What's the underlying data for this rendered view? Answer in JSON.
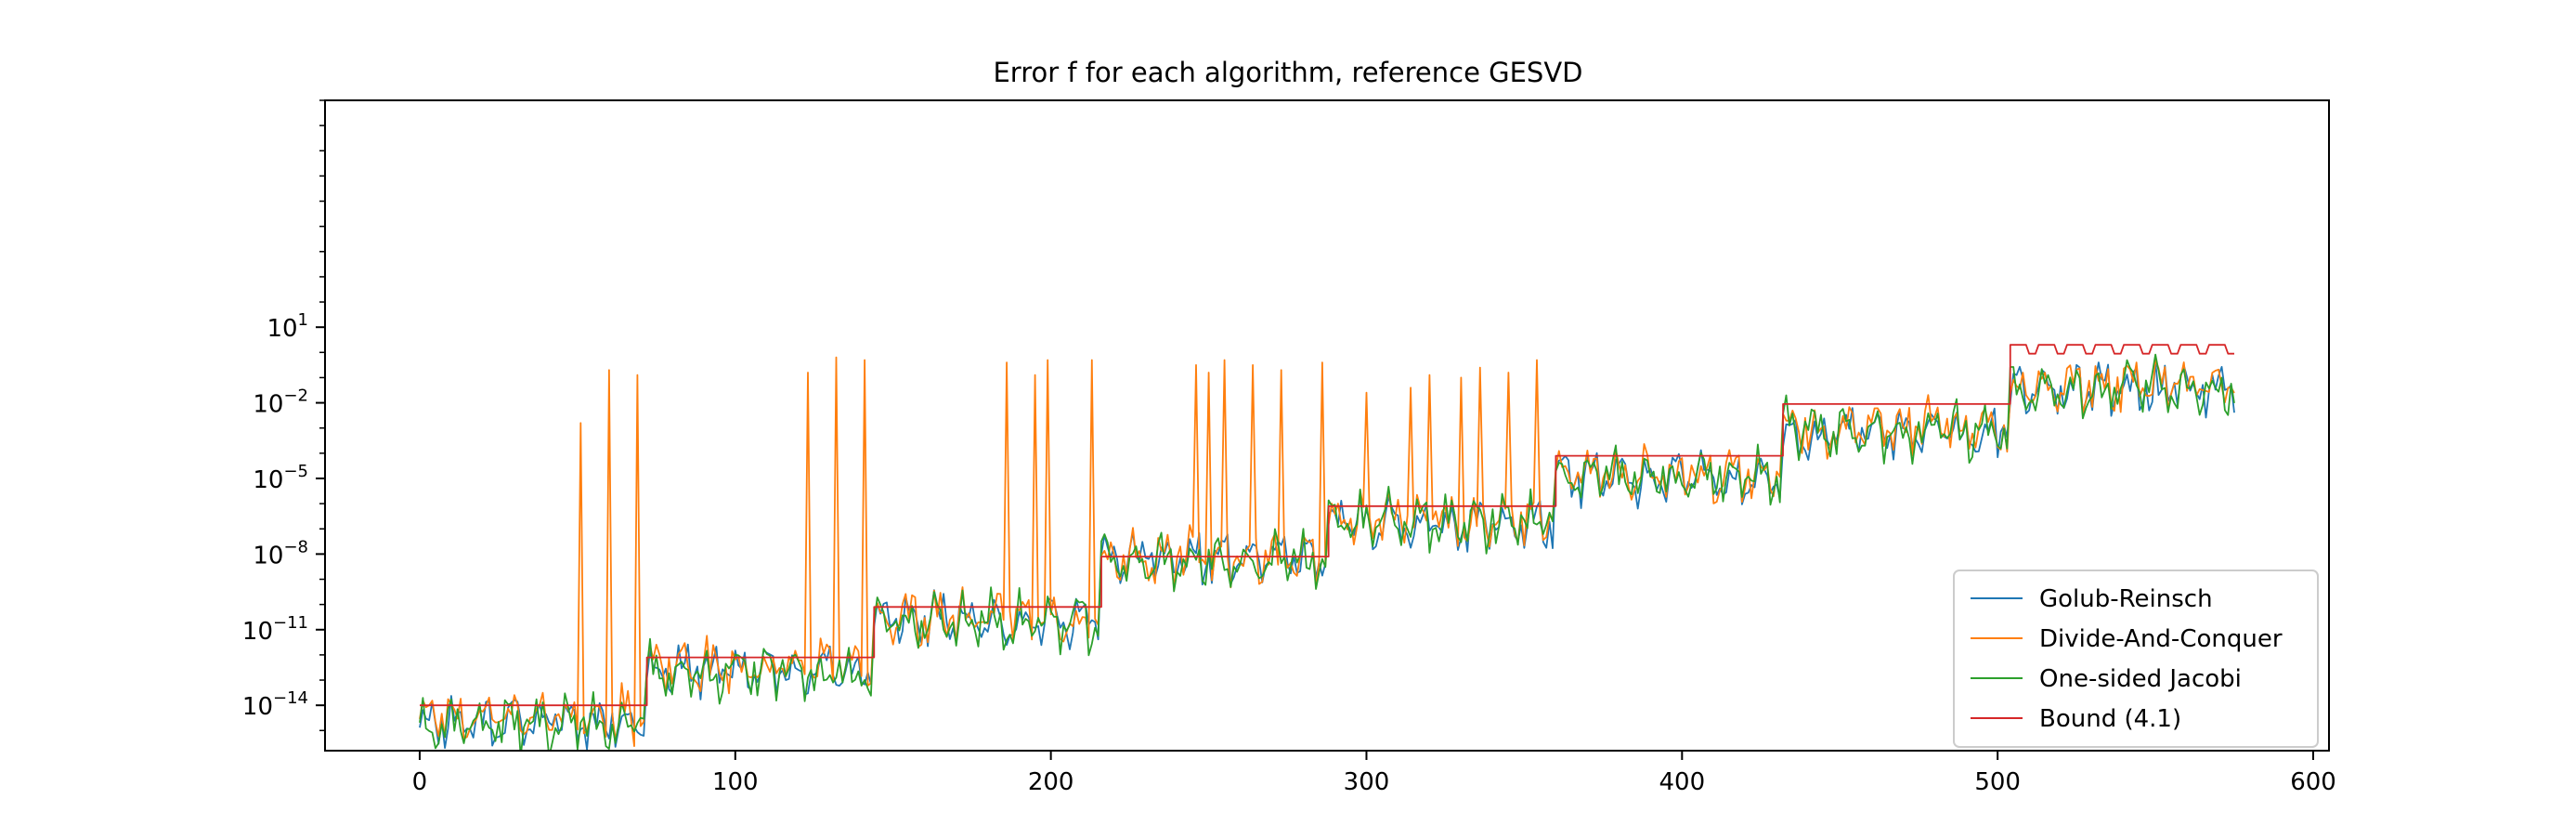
{
  "chart_data": {
    "type": "line",
    "title": "Error f for each algorithm, reference GESVD",
    "xlabel": "",
    "ylabel": "",
    "xscale": "linear",
    "yscale": "log",
    "xlim": [
      -30,
      605
    ],
    "ylim_log10": [
      -15.8,
      10
    ],
    "x_ticks": [
      {
        "value": 0,
        "label": "0"
      },
      {
        "value": 100,
        "label": "100"
      },
      {
        "value": 200,
        "label": "200"
      },
      {
        "value": 300,
        "label": "300"
      },
      {
        "value": 400,
        "label": "400"
      },
      {
        "value": 500,
        "label": "500"
      },
      {
        "value": 600,
        "label": "600"
      }
    ],
    "y_ticks": [
      {
        "exp": 1,
        "base": "10",
        "sup": "1"
      },
      {
        "exp": -2,
        "base": "10",
        "sup": "−2"
      },
      {
        "exp": -5,
        "base": "10",
        "sup": "−5"
      },
      {
        "exp": -8,
        "base": "10",
        "sup": "−8"
      },
      {
        "exp": -11,
        "base": "10",
        "sup": "−11"
      },
      {
        "exp": -14,
        "base": "10",
        "sup": "−14"
      }
    ],
    "grid": false,
    "legend_position": "lower-right",
    "x_count": 576,
    "series": [
      {
        "name": "Golub-Reinsch",
        "color": "#1f77b4",
        "note": "log10 error trend per x-block of 72, approximate",
        "levels": [
          -14.6,
          -12.6,
          -10.6,
          -8.2,
          -6.8,
          -5.0,
          -3.2,
          -1.5
        ],
        "spread": 1.1,
        "seed": 11
      },
      {
        "name": "Divide-And-Conquer",
        "color": "#ff7f0e",
        "levels": [
          -14.4,
          -12.5,
          -10.5,
          -8.1,
          -6.6,
          -4.8,
          -3.0,
          -1.3
        ],
        "spread": 1.2,
        "seed": 23,
        "spikes": [
          [
            51,
            -2.8
          ],
          [
            60,
            -0.7
          ],
          [
            69,
            -0.9
          ],
          [
            123,
            -0.8
          ],
          [
            132,
            -0.2
          ],
          [
            141,
            -0.3
          ],
          [
            186,
            -0.4
          ],
          [
            195,
            -0.9
          ],
          [
            199,
            -0.3
          ],
          [
            213,
            -0.3
          ],
          [
            246,
            -0.5
          ],
          [
            250,
            -0.8
          ],
          [
            255,
            -0.3
          ],
          [
            264,
            -0.5
          ],
          [
            273,
            -0.7
          ],
          [
            286,
            -0.4
          ],
          [
            300,
            -1.6
          ],
          [
            314,
            -1.4
          ],
          [
            320,
            -0.9
          ],
          [
            330,
            -1.0
          ],
          [
            336,
            -0.6
          ],
          [
            345,
            -0.8
          ],
          [
            354,
            -0.3
          ]
        ]
      },
      {
        "name": "One-sided Jacobi",
        "color": "#2ca02c",
        "levels": [
          -14.7,
          -12.7,
          -10.7,
          -8.3,
          -6.7,
          -5.0,
          -3.1,
          -1.4
        ],
        "spread": 1.2,
        "seed": 37
      },
      {
        "name": "Bound (4.1)",
        "color": "#d62728",
        "steps": [
          [
            0,
            72,
            -14.0
          ],
          [
            72,
            144,
            -12.1
          ],
          [
            144,
            216,
            -10.1
          ],
          [
            216,
            288,
            -8.1
          ],
          [
            288,
            360,
            -6.1
          ],
          [
            360,
            432,
            -4.1
          ],
          [
            432,
            504,
            -2.05
          ]
        ],
        "oscillation": {
          "from": 504,
          "to": 576,
          "high": 0.3,
          "low": -0.05,
          "period": 9
        }
      }
    ]
  }
}
